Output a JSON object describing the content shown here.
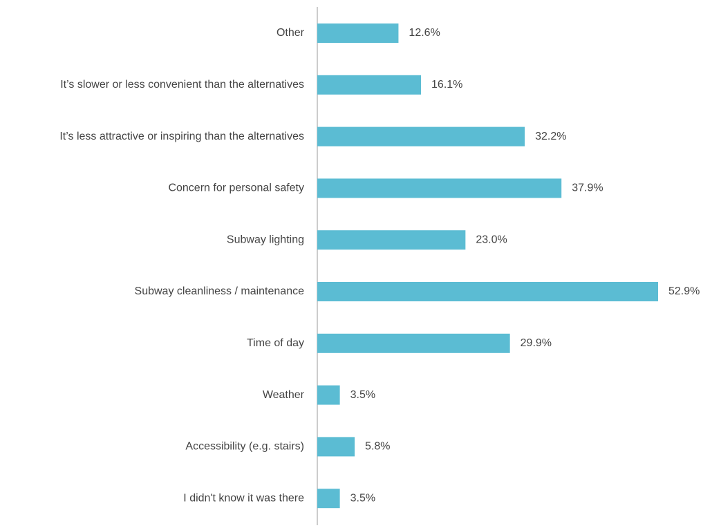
{
  "chart_data": {
    "type": "bar",
    "orientation": "horizontal",
    "categories": [
      "Other",
      "It’s slower or less convenient than the alternatives",
      "It’s less attractive or inspiring than the alternatives",
      "Concern for personal safety",
      "Subway lighting",
      "Subway cleanliness / maintenance",
      "Time of day",
      "Weather",
      "Accessibility (e.g. stairs)",
      "I didn't know it was there"
    ],
    "values": [
      12.6,
      16.1,
      32.2,
      37.9,
      23.0,
      52.9,
      29.9,
      3.5,
      5.8,
      3.5
    ],
    "value_labels": [
      "12.6%",
      "16.1%",
      "32.2%",
      "37.9%",
      "23.0%",
      "52.9%",
      "29.9%",
      "3.5%",
      "5.8%",
      "3.5%"
    ],
    "color": "#5bbcd3"
  }
}
